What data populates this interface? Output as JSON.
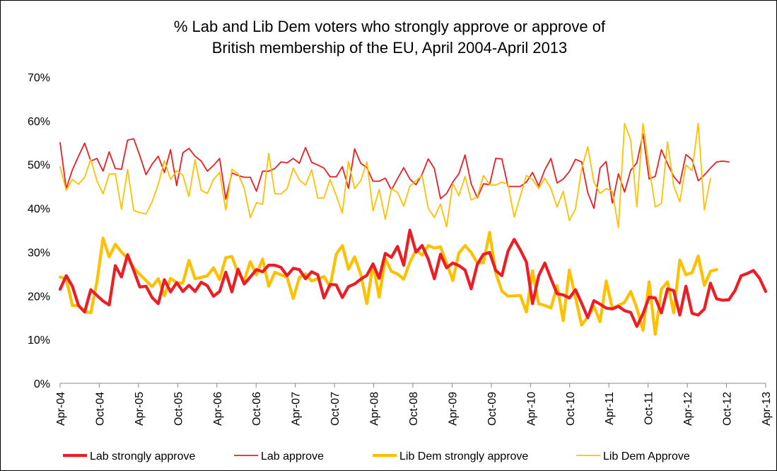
{
  "chart_data": {
    "type": "line",
    "title_lines": [
      "% Lab and Lib Dem voters who strongly approve or approve of",
      "British membership of the EU, April 2004-April 2013"
    ],
    "ylim": [
      0,
      70
    ],
    "yticks": [
      "0%",
      "10%",
      "20%",
      "30%",
      "40%",
      "50%",
      "60%",
      "70%"
    ],
    "x_start": "2004-04",
    "x_end": "2013-04",
    "xticks": [
      "Apr-04",
      "Oct-04",
      "Apr-05",
      "Oct-05",
      "Apr-06",
      "Oct-06",
      "Apr-07",
      "Oct-07",
      "Apr-08",
      "Oct-08",
      "Apr-09",
      "Oct-09",
      "Apr-10",
      "Oct-10",
      "Apr-11",
      "Oct-11",
      "Apr-12",
      "Oct-12",
      "Apr-13"
    ],
    "grid": false,
    "legend_position": "bottom",
    "series": [
      {
        "name": "Lab strongly approve",
        "color": "#ee1c24",
        "width": "thick",
        "values": [
          21.5,
          24.6,
          22.2,
          17.8,
          16.3,
          21.4,
          20.1,
          18.8,
          17.9,
          26.9,
          24.3,
          29.4,
          25.8,
          22.0,
          22.2,
          19.6,
          18.2,
          23.7,
          20.9,
          23.0,
          21.0,
          22.4,
          21.0,
          23.1,
          22.3,
          19.9,
          21.0,
          25.4,
          20.9,
          26.1,
          22.7,
          24.3,
          26.0,
          25.5,
          27.0,
          27.0,
          26.5,
          24.6,
          26.3,
          26.0,
          23.9,
          25.5,
          24.8,
          19.5,
          22.6,
          22.5,
          19.6,
          22.1,
          22.7,
          23.8,
          24.7,
          27.3,
          24.0,
          29.7,
          28.8,
          31.3,
          27.0,
          35.0,
          30.0,
          31.5,
          28.4,
          23.9,
          29.5,
          26.4,
          27.5,
          26.9,
          25.9,
          21.6,
          27.2,
          29.5,
          29.9,
          25.8,
          24.6,
          30.2,
          32.9,
          30.5,
          27.7,
          18.2,
          24.6,
          27.5,
          23.9,
          20.5,
          20.2,
          19.5,
          21.4,
          18.3,
          15.0,
          18.9,
          18.1,
          17.2,
          17.0,
          17.6,
          16.6,
          16.2,
          13.0,
          15.9,
          19.7,
          19.5,
          16.1,
          21.6,
          21.2,
          15.6,
          22.2,
          16.0,
          15.6,
          17.0,
          22.9,
          19.3,
          19.0,
          19.1,
          21.2,
          24.6,
          25.1,
          25.8,
          24.0,
          21.0
        ]
      },
      {
        "name": "Lab approve",
        "color": "#ee1c24",
        "width": "thin",
        "values": [
          55.0,
          44.5,
          48.8,
          51.9,
          54.9,
          50.8,
          51.4,
          48.5,
          52.9,
          49.1,
          48.9,
          55.6,
          55.9,
          52.0,
          47.7,
          50.1,
          51.9,
          48.2,
          53.4,
          45.2,
          52.7,
          53.7,
          51.9,
          50.8,
          48.5,
          49.8,
          51.4,
          42.1,
          48.1,
          47.5,
          47.1,
          47.1,
          43.9,
          48.5,
          48.5,
          49.1,
          50.6,
          50.4,
          51.4,
          50.3,
          53.9,
          50.5,
          49.9,
          49.2,
          47.2,
          47.2,
          49.5,
          44.6,
          53.6,
          50.3,
          49.3,
          46.2,
          46.2,
          46.9,
          44.2,
          46.8,
          49.3,
          46.7,
          45.4,
          47.8,
          51.3,
          49.1,
          42.2,
          43.4,
          46.0,
          47.9,
          52.2,
          45.6,
          42.4,
          45.6,
          45.4,
          51.4,
          51.3,
          45.0,
          45.0,
          45.0,
          46.0,
          48.2,
          45.1,
          48.8,
          51.4,
          45.8,
          46.7,
          48.4,
          51.2,
          50.6,
          43.6,
          40.0,
          49.2,
          50.7,
          41.2,
          47.9,
          43.7,
          48.7,
          50.4,
          57.0,
          46.7,
          47.3,
          53.4,
          50.2,
          47.3,
          45.6,
          52.3,
          51.1,
          46.3,
          47.6,
          49.2,
          50.6,
          50.8,
          50.6
        ]
      },
      {
        "name": "Lib Dem strongly approve",
        "color": "#ffc000",
        "width": "thick",
        "values": [
          24.3,
          23.9,
          17.8,
          17.7,
          16.5,
          16.1,
          23.2,
          33.2,
          28.9,
          31.8,
          30.0,
          28.5,
          26.4,
          24.9,
          23.5,
          22.1,
          23.9,
          20.0,
          24.0,
          23.0,
          22.9,
          28.1,
          23.9,
          24.2,
          24.6,
          26.4,
          23.7,
          28.7,
          29.0,
          25.2,
          23.5,
          27.8,
          24.8,
          28.4,
          22.2,
          25.4,
          24.8,
          24.2,
          19.4,
          24.2,
          25.0,
          23.4,
          23.9,
          24.4,
          22.1,
          29.5,
          31.5,
          26.1,
          28.9,
          24.9,
          18.2,
          27.3,
          19.7,
          28.5,
          25.6,
          25.0,
          23.8,
          27.6,
          30.5,
          29.3,
          31.5,
          30.9,
          31.2,
          27.5,
          23.5,
          29.8,
          31.5,
          29.9,
          27.5,
          27.6,
          34.5,
          25.2,
          21.1,
          19.9,
          20.0,
          20.1,
          16.3,
          25.7,
          18.2,
          17.8,
          17.2,
          22.3,
          14.3,
          25.9,
          19.6,
          13.3,
          15.2,
          17.6,
          14.1,
          23.4,
          17.2,
          17.8,
          18.5,
          21.0,
          17.2,
          12.1,
          23.2,
          11.2,
          21.5,
          23.2,
          16.1,
          28.2,
          24.8,
          25.3,
          29.1,
          22.4,
          25.6,
          26.0
        ]
      },
      {
        "name": "Lib Dem Approve",
        "color": "#ffc000",
        "width": "thin",
        "values": [
          49.5,
          44.1,
          46.6,
          45.5,
          47.1,
          51.2,
          46.3,
          43.3,
          47.8,
          47.9,
          39.8,
          48.9,
          39.5,
          39.0,
          38.7,
          41.5,
          45.5,
          50.9,
          46.6,
          48.6,
          47.6,
          42.7,
          51.1,
          44.1,
          43.4,
          46.6,
          48.2,
          39.6,
          48.9,
          47.9,
          44.6,
          37.9,
          41.3,
          40.9,
          52.6,
          43.3,
          43.3,
          44.5,
          49.2,
          46.5,
          45.3,
          48.8,
          42.3,
          42.4,
          46.6,
          42.9,
          38.9,
          50.7,
          44.5,
          46.3,
          50.6,
          39.4,
          44.3,
          37.5,
          44.5,
          43.6,
          40.5,
          45.0,
          46.3,
          47.5,
          40.0,
          37.9,
          41.0,
          35.8,
          45.7,
          42.9,
          47.3,
          41.9,
          42.6,
          47.5,
          45.4,
          45.3,
          46.0,
          45.5,
          38.0,
          42.7,
          47.5,
          46.6,
          44.5,
          46.9,
          44.5,
          40.3,
          43.9,
          37.2,
          39.9,
          49.0,
          54.1,
          46.0,
          43.4,
          44.5,
          43.9,
          35.6,
          59.4,
          55.6,
          40.3,
          59.4,
          49.4,
          40.3,
          41.1,
          55.2,
          45.2,
          41.5,
          49.9,
          48.6,
          59.4,
          39.6,
          46.8
        ]
      }
    ]
  }
}
